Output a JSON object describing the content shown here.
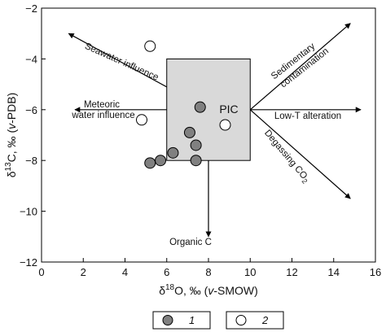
{
  "chart_data": {
    "type": "scatter",
    "title": "",
    "xlabel": {
      "prefix": "δ",
      "sup": "18",
      "main": "O, ‰ (",
      "ital": "v",
      "suffix": "-SMOW)"
    },
    "ylabel": {
      "prefix": "δ",
      "sup": "13",
      "main": "C, ‰ (",
      "ital": "v",
      "suffix": "-PDB)"
    },
    "xlim": [
      0,
      16
    ],
    "ylim": [
      -12,
      -2
    ],
    "xticks": [
      0,
      2,
      4,
      6,
      8,
      10,
      12,
      14,
      16
    ],
    "yticks": [
      -2,
      -4,
      -6,
      -8,
      -10,
      -12
    ],
    "grid": false,
    "box": {
      "label": "PIC",
      "x": [
        6,
        10
      ],
      "y": [
        -8,
        -4
      ]
    },
    "series": [
      {
        "name": "1",
        "marker": "filled-circle",
        "color": "#808080",
        "x": [
          7.6,
          7.1,
          7.4,
          7.4,
          6.3,
          5.7,
          5.2
        ],
        "y": [
          -5.9,
          -6.9,
          -7.4,
          -8.0,
          -7.7,
          -8.0,
          -8.1
        ]
      },
      {
        "name": "2",
        "marker": "open-circle",
        "color": "#ffffff",
        "x": [
          5.2,
          4.8,
          8.8
        ],
        "y": [
          -3.5,
          -6.4,
          -6.6
        ]
      }
    ],
    "arrows": [
      {
        "text": "Seawater influence",
        "from": [
          8,
          -6
        ],
        "to": [
          1.3,
          -3.0
        ]
      },
      {
        "text_lines": [
          "Meteoric",
          "water influence"
        ],
        "from": [
          6,
          -6
        ],
        "to": [
          1.6,
          -6
        ]
      },
      {
        "text": "Organic C",
        "from": [
          8,
          -8
        ],
        "to": [
          8,
          -11
        ]
      },
      {
        "text_lines": [
          "Sedimentary",
          "contamination"
        ],
        "from": [
          10,
          -6
        ],
        "to": [
          14.8,
          -2.6
        ]
      },
      {
        "text": "Low-T alteration",
        "from": [
          10,
          -6
        ],
        "to": [
          15.3,
          -6
        ]
      },
      {
        "text": "Degassing CO",
        "sub": "2",
        "from": [
          10,
          -6
        ],
        "to": [
          14.8,
          -9.5
        ]
      }
    ],
    "legend": {
      "placement": "bottom",
      "entries": [
        "1",
        "2"
      ]
    }
  }
}
